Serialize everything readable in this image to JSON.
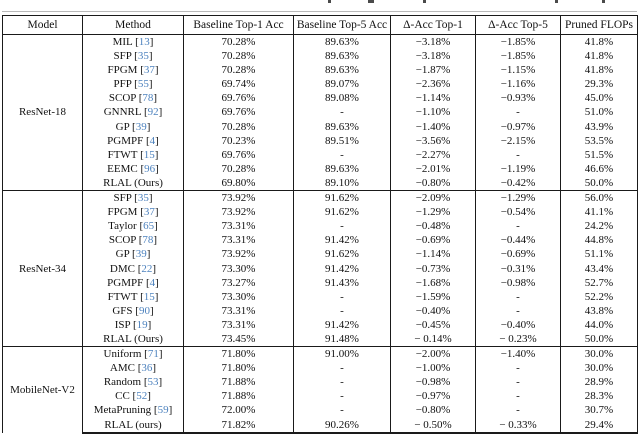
{
  "colors": {
    "citation_blue": "#4d82be",
    "border": "#1a1a1a",
    "text": "#111111",
    "background": "#ffffff"
  },
  "table": {
    "headers": [
      "Model",
      "Method",
      "Baseline Top-1 Acc",
      "Baseline Top-5 Acc",
      "Δ-Acc Top-1",
      "Δ-Acc Top-5",
      "Pruned FLOPs"
    ],
    "sections": [
      {
        "model": "ResNet-18",
        "rows": [
          {
            "method": "MIL",
            "cite": "13",
            "b1": "70.28%",
            "b5": "89.63%",
            "d1": "−3.18%",
            "d5": "−1.85%",
            "fl": "41.8%",
            "bold": []
          },
          {
            "method": "SFP",
            "cite": "35",
            "b1": "70.28%",
            "b5": "89.63%",
            "d1": "−3.18%",
            "d5": "−1.85%",
            "fl": "41.8%",
            "bold": []
          },
          {
            "method": "FPGM",
            "cite": "37",
            "b1": "70.28%",
            "b5": "89.63%",
            "d1": "−1.87%",
            "d5": "−1.15%",
            "fl": "41.8%",
            "bold": []
          },
          {
            "method": "PFP",
            "cite": "55",
            "b1": "69.74%",
            "b5": "89.07%",
            "d1": "−2.36%",
            "d5": "−1.16%",
            "fl": "29.3%",
            "bold": []
          },
          {
            "method": "SCOP",
            "cite": "78",
            "b1": "69.76%",
            "b5": "89.08%",
            "d1": "−1.14%",
            "d5": "−0.93%",
            "fl": "45.0%",
            "bold": []
          },
          {
            "method": "GNNRL",
            "cite": "92",
            "b1": "69.76%",
            "b5": "-",
            "d1": "−1.10%",
            "d5": "-",
            "fl": "51.0%",
            "bold": []
          },
          {
            "method": "GP",
            "cite": "39",
            "b1": "70.28%",
            "b5": "89.63%",
            "d1": "−1.40%",
            "d5": "−0.97%",
            "fl": "43.9%",
            "bold": []
          },
          {
            "method": "PGMPF",
            "cite": "4",
            "b1": "70.23%",
            "b5": "89.51%",
            "d1": "−3.56%",
            "d5": "−2.15%",
            "fl": "53.5%",
            "bold": []
          },
          {
            "method": "FTWT",
            "cite": "15",
            "b1": "69.76%",
            "b5": "-",
            "d1": "−2.27%",
            "d5": "-",
            "fl": "51.5%",
            "bold": []
          },
          {
            "method": "EEMC",
            "cite": "96",
            "b1": "70.28%",
            "b5": "89.63%",
            "d1": "−2.01%",
            "d5": "−1.19%",
            "fl": "46.6%",
            "bold": []
          },
          {
            "method": "RLAL (Ours)",
            "cite": null,
            "b1": "69.80%",
            "b5": "89.10%",
            "d1": "−0.80%",
            "d5": "−0.42%",
            "fl": "50.0%",
            "bold": [
              "d1",
              "d5",
              "fl"
            ]
          }
        ]
      },
      {
        "model": "ResNet-34",
        "rows": [
          {
            "method": "SFP",
            "cite": "35",
            "b1": "73.92%",
            "b5": "91.62%",
            "d1": "−2.09%",
            "d5": "−1.29%",
            "fl": "56.0%",
            "bold": []
          },
          {
            "method": "FPGM",
            "cite": "37",
            "b1": "73.92%",
            "b5": "91.62%",
            "d1": "−1.29%",
            "d5": "−0.54%",
            "fl": "41.1%",
            "bold": []
          },
          {
            "method": "Taylor",
            "cite": "65",
            "b1": "73.31%",
            "b5": "-",
            "d1": "−0.48%",
            "d5": "-",
            "fl": "24.2%",
            "bold": []
          },
          {
            "method": "SCOP",
            "cite": "78",
            "b1": "73.31%",
            "b5": "91.42%",
            "d1": "−0.69%",
            "d5": "−0.44%",
            "fl": "44.8%",
            "bold": []
          },
          {
            "method": "GP",
            "cite": "39",
            "b1": "73.92%",
            "b5": "91.62%",
            "d1": "−1.14%",
            "d5": "−0.69%",
            "fl": "51.1%",
            "bold": []
          },
          {
            "method": "DMC",
            "cite": "22",
            "b1": "73.30%",
            "b5": "91.42%",
            "d1": "−0.73%",
            "d5": "−0.31%",
            "fl": "43.4%",
            "bold": []
          },
          {
            "method": "PGMPF",
            "cite": "4",
            "b1": "73.27%",
            "b5": "91.43%",
            "d1": "−1.68%",
            "d5": "−0.98%",
            "fl": "52.7%",
            "bold": []
          },
          {
            "method": "FTWT",
            "cite": "15",
            "b1": "73.30%",
            "b5": "-",
            "d1": "−1.59%",
            "d5": "-",
            "fl": "52.2%",
            "bold": []
          },
          {
            "method": "GFS",
            "cite": "90",
            "b1": "73.31%",
            "b5": "-",
            "d1": "−0.40%",
            "d5": "-",
            "fl": "43.8%",
            "bold": []
          },
          {
            "method": "ISP",
            "cite": "19",
            "b1": "73.31%",
            "b5": "91.42%",
            "d1": "−0.45%",
            "d5": "−0.40%",
            "fl": "44.0%",
            "bold": []
          },
          {
            "method": "RLAL (Ours)",
            "cite": null,
            "b1": "73.45%",
            "b5": "91.48%",
            "d1": "− 0.14%",
            "d5": "− 0.23%",
            "fl": "50.0%",
            "bold": [
              "d1",
              "d5",
              "fl"
            ]
          }
        ]
      },
      {
        "model": "MobileNet-V2",
        "rows": [
          {
            "method": "Uniform",
            "cite": "71",
            "b1": "71.80%",
            "b5": "91.00%",
            "d1": "−2.00%",
            "d5": "−1.40%",
            "fl": "30.0%",
            "bold": []
          },
          {
            "method": "AMC",
            "cite": "36",
            "b1": "71.80%",
            "b5": "-",
            "d1": "−1.00%",
            "d5": "-",
            "fl": "30.0%",
            "bold": []
          },
          {
            "method": "Random",
            "cite": "53",
            "b1": "71.88%",
            "b5": "-",
            "d1": "−0.98%",
            "d5": "-",
            "fl": "28.9%",
            "bold": []
          },
          {
            "method": "CC",
            "cite": "52",
            "b1": "71.88%",
            "b5": "-",
            "d1": "−0.97%",
            "d5": "-",
            "fl": "28.3%",
            "bold": []
          },
          {
            "method": "MetaPruning",
            "cite": "59",
            "b1": "72.00%",
            "b5": "-",
            "d1": "−0.80%",
            "d5": "-",
            "fl": "30.7%",
            "bold": [
              "fl"
            ]
          },
          {
            "method": "RLAL (ours)",
            "cite": null,
            "b1": "71.82%",
            "b5": "90.26%",
            "d1": "− 0.50%",
            "d5": "− 0.33%",
            "fl": "29.4%",
            "bold": [
              "d1",
              "d5"
            ]
          }
        ]
      }
    ]
  }
}
